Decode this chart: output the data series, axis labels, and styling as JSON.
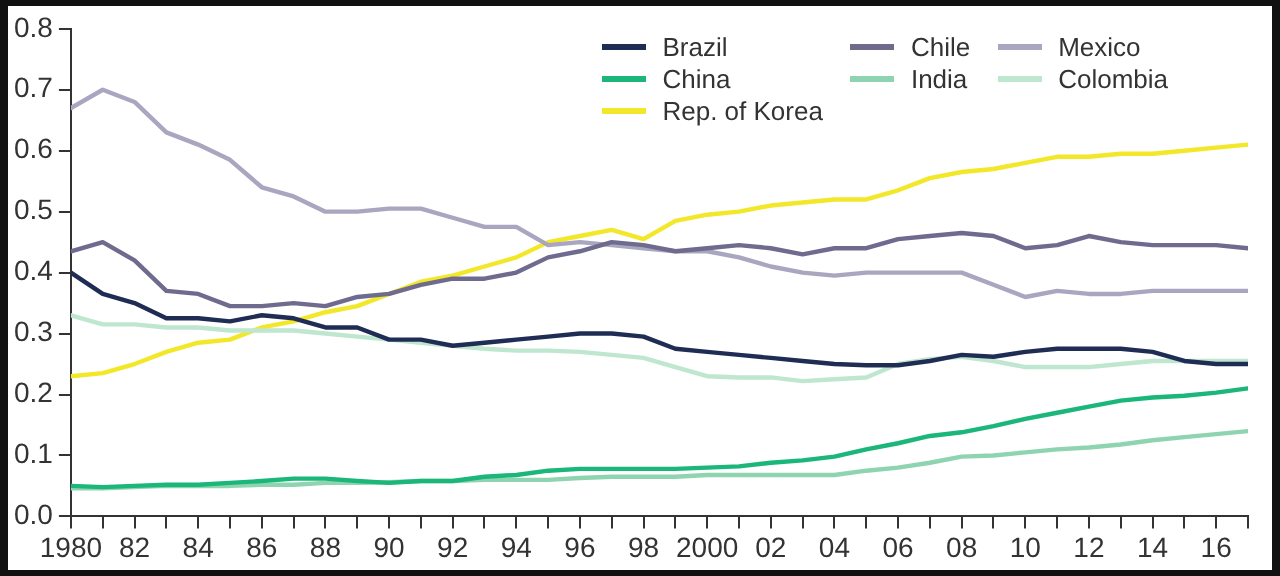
{
  "chart_data": {
    "type": "line",
    "x": [
      1980,
      1981,
      1982,
      1983,
      1984,
      1985,
      1986,
      1987,
      1988,
      1989,
      1990,
      1991,
      1992,
      1993,
      1994,
      1995,
      1996,
      1997,
      1998,
      1999,
      2000,
      2001,
      2002,
      2003,
      2004,
      2005,
      2006,
      2007,
      2008,
      2009,
      2010,
      2011,
      2012,
      2013,
      2014,
      2015,
      2016,
      2017
    ],
    "series": [
      {
        "name": "Brazil",
        "color": "#1f2d55",
        "values": [
          0.4,
          0.365,
          0.35,
          0.325,
          0.325,
          0.32,
          0.33,
          0.325,
          0.31,
          0.31,
          0.29,
          0.29,
          0.28,
          0.285,
          0.29,
          0.295,
          0.3,
          0.3,
          0.295,
          0.275,
          0.27,
          0.265,
          0.26,
          0.255,
          0.25,
          0.248,
          0.248,
          0.255,
          0.265,
          0.262,
          0.27,
          0.275,
          0.275,
          0.275,
          0.27,
          0.255,
          0.25,
          0.25
        ]
      },
      {
        "name": "Chile",
        "color": "#6e6b8f",
        "values": [
          0.435,
          0.45,
          0.42,
          0.37,
          0.365,
          0.345,
          0.345,
          0.35,
          0.345,
          0.36,
          0.365,
          0.38,
          0.39,
          0.39,
          0.4,
          0.425,
          0.435,
          0.45,
          0.445,
          0.435,
          0.44,
          0.445,
          0.44,
          0.43,
          0.44,
          0.44,
          0.455,
          0.46,
          0.465,
          0.46,
          0.44,
          0.445,
          0.46,
          0.45,
          0.445,
          0.445,
          0.445,
          0.44
        ]
      },
      {
        "name": "Mexico",
        "color": "#a9a6bf",
        "values": [
          0.67,
          0.7,
          0.68,
          0.63,
          0.61,
          0.585,
          0.54,
          0.525,
          0.5,
          0.5,
          0.505,
          0.505,
          0.49,
          0.475,
          0.475,
          0.445,
          0.45,
          0.445,
          0.44,
          0.435,
          0.435,
          0.425,
          0.41,
          0.4,
          0.395,
          0.4,
          0.4,
          0.4,
          0.4,
          0.38,
          0.36,
          0.37,
          0.365,
          0.365,
          0.37,
          0.37,
          0.37,
          0.37
        ]
      },
      {
        "name": "China",
        "color": "#1ab67a",
        "values": [
          0.05,
          0.048,
          0.05,
          0.052,
          0.052,
          0.055,
          0.058,
          0.062,
          0.062,
          0.058,
          0.055,
          0.058,
          0.058,
          0.065,
          0.068,
          0.075,
          0.078,
          0.078,
          0.078,
          0.078,
          0.08,
          0.082,
          0.088,
          0.092,
          0.098,
          0.11,
          0.12,
          0.132,
          0.138,
          0.148,
          0.16,
          0.17,
          0.18,
          0.19,
          0.195,
          0.198,
          0.203,
          0.21
        ]
      },
      {
        "name": "India",
        "color": "#8fd4b0",
        "values": [
          0.046,
          0.046,
          0.048,
          0.05,
          0.05,
          0.05,
          0.052,
          0.052,
          0.055,
          0.055,
          0.056,
          0.058,
          0.058,
          0.06,
          0.06,
          0.06,
          0.063,
          0.065,
          0.065,
          0.065,
          0.068,
          0.068,
          0.068,
          0.068,
          0.068,
          0.075,
          0.08,
          0.088,
          0.098,
          0.1,
          0.105,
          0.11,
          0.113,
          0.118,
          0.125,
          0.13,
          0.135,
          0.14
        ]
      },
      {
        "name": "Colombia",
        "color": "#bfe6cf",
        "values": [
          0.33,
          0.315,
          0.315,
          0.31,
          0.31,
          0.305,
          0.305,
          0.305,
          0.3,
          0.295,
          0.29,
          0.285,
          0.28,
          0.275,
          0.272,
          0.272,
          0.27,
          0.265,
          0.26,
          0.245,
          0.23,
          0.228,
          0.228,
          0.222,
          0.225,
          0.228,
          0.25,
          0.258,
          0.262,
          0.255,
          0.245,
          0.245,
          0.245,
          0.25,
          0.255,
          0.255,
          0.255,
          0.255
        ]
      },
      {
        "name": "Rep. of Korea",
        "color": "#f2e829",
        "values": [
          0.23,
          0.235,
          0.25,
          0.27,
          0.285,
          0.29,
          0.31,
          0.32,
          0.335,
          0.345,
          0.365,
          0.385,
          0.395,
          0.41,
          0.425,
          0.45,
          0.46,
          0.47,
          0.455,
          0.485,
          0.495,
          0.5,
          0.51,
          0.515,
          0.52,
          0.52,
          0.535,
          0.555,
          0.565,
          0.57,
          0.58,
          0.59,
          0.59,
          0.595,
          0.595,
          0.6,
          0.605,
          0.61
        ]
      }
    ],
    "xlim": [
      1980,
      2017
    ],
    "xticks": [
      {
        "value": 1980,
        "label": "1980"
      },
      {
        "value": 1981,
        "label": null
      },
      {
        "value": 1982,
        "label": "82"
      },
      {
        "value": 1983,
        "label": null
      },
      {
        "value": 1984,
        "label": "84"
      },
      {
        "value": 1985,
        "label": null
      },
      {
        "value": 1986,
        "label": "86"
      },
      {
        "value": 1987,
        "label": null
      },
      {
        "value": 1988,
        "label": "88"
      },
      {
        "value": 1989,
        "label": null
      },
      {
        "value": 1990,
        "label": "90"
      },
      {
        "value": 1991,
        "label": null
      },
      {
        "value": 1992,
        "label": "92"
      },
      {
        "value": 1993,
        "label": null
      },
      {
        "value": 1994,
        "label": "94"
      },
      {
        "value": 1995,
        "label": null
      },
      {
        "value": 1996,
        "label": "96"
      },
      {
        "value": 1997,
        "label": null
      },
      {
        "value": 1998,
        "label": "98"
      },
      {
        "value": 1999,
        "label": null
      },
      {
        "value": 2000,
        "label": "2000"
      },
      {
        "value": 2001,
        "label": null
      },
      {
        "value": 2002,
        "label": "02"
      },
      {
        "value": 2003,
        "label": null
      },
      {
        "value": 2004,
        "label": "04"
      },
      {
        "value": 2005,
        "label": null
      },
      {
        "value": 2006,
        "label": "06"
      },
      {
        "value": 2007,
        "label": null
      },
      {
        "value": 2008,
        "label": "08"
      },
      {
        "value": 2009,
        "label": null
      },
      {
        "value": 2010,
        "label": "10"
      },
      {
        "value": 2011,
        "label": null
      },
      {
        "value": 2012,
        "label": "12"
      },
      {
        "value": 2013,
        "label": null
      },
      {
        "value": 2014,
        "label": "14"
      },
      {
        "value": 2015,
        "label": null
      },
      {
        "value": 2016,
        "label": "16"
      },
      {
        "value": 2017,
        "label": null
      }
    ],
    "ylim": [
      0,
      0.8
    ],
    "yticks": [
      {
        "value": 0,
        "label": "0.0"
      },
      0.1,
      0.2,
      0.3,
      0.4,
      0.5,
      0.6,
      0.7,
      0.8
    ],
    "grid": false,
    "legend": "top right",
    "marker": "none",
    "line_style": "solid"
  }
}
